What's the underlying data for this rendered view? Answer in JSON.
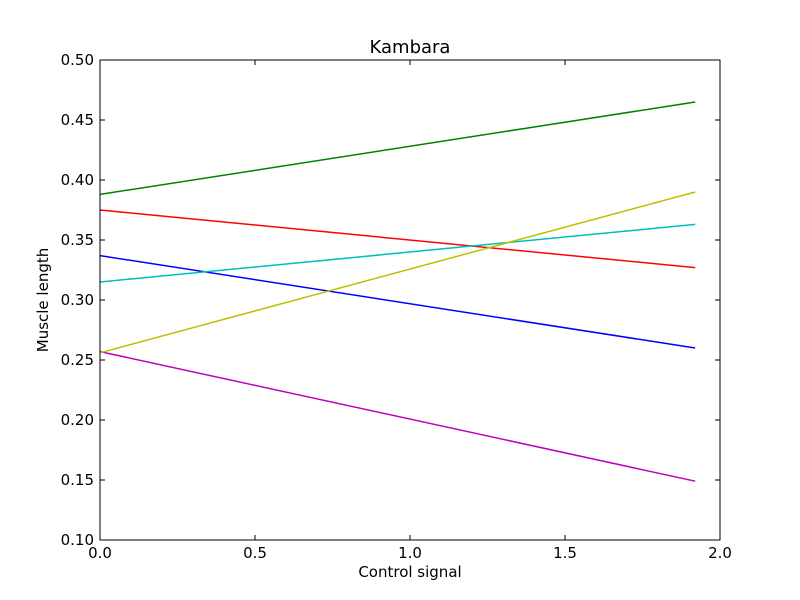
{
  "chart_data": {
    "type": "line",
    "title": "Kambara",
    "xlabel": "Control signal",
    "ylabel": "Muscle length",
    "xlim": [
      0.0,
      2.0
    ],
    "ylim": [
      0.1,
      0.5
    ],
    "xticks": [
      "0.0",
      "0.5",
      "1.0",
      "1.5",
      "2.0"
    ],
    "yticks": [
      "0.10",
      "0.15",
      "0.20",
      "0.25",
      "0.30",
      "0.35",
      "0.40",
      "0.45",
      "0.50"
    ],
    "grid": false,
    "legend": "none",
    "series": [
      {
        "color": "#0000ff",
        "x": [
          0.0,
          1.92
        ],
        "y": [
          0.337,
          0.26
        ]
      },
      {
        "color": "#008000",
        "x": [
          0.0,
          1.92
        ],
        "y": [
          0.388,
          0.465
        ]
      },
      {
        "color": "#ff0000",
        "x": [
          0.0,
          1.92
        ],
        "y": [
          0.375,
          0.327
        ]
      },
      {
        "color": "#00bfbf",
        "x": [
          0.0,
          1.92
        ],
        "y": [
          0.315,
          0.363
        ]
      },
      {
        "color": "#bf00bf",
        "x": [
          0.0,
          1.92
        ],
        "y": [
          0.257,
          0.149
        ]
      },
      {
        "color": "#bfbf00",
        "x": [
          0.0,
          1.92
        ],
        "y": [
          0.256,
          0.39
        ]
      }
    ]
  }
}
